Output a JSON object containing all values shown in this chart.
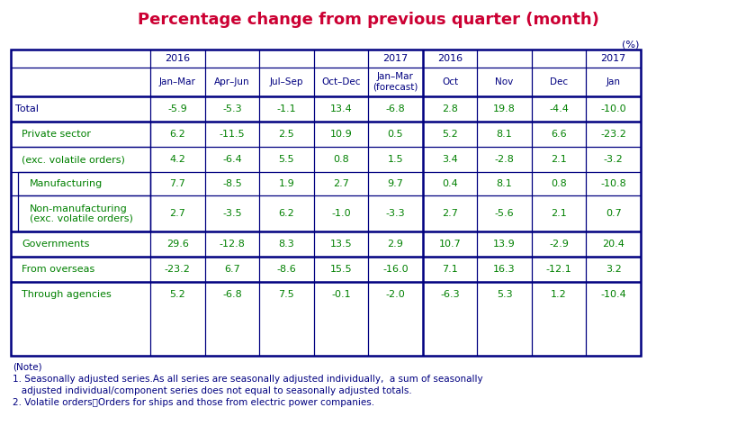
{
  "title": "Percentage change from previous quarter (month)",
  "title_color": "#cc0033",
  "percent_label": "(%)",
  "col_header_color": "#000080",
  "val_color": "#008000",
  "border_color": "#000080",
  "background_color": "#ffffff",
  "year_labels": [
    {
      "col": 1,
      "text": "2016"
    },
    {
      "col": 5,
      "text": "2017"
    },
    {
      "col": 6,
      "text": "2016"
    },
    {
      "col": 9,
      "text": "2017"
    }
  ],
  "col_labels": [
    "",
    "Jan–Mar",
    "Apr–Jun",
    "Jul–Sep",
    "Oct–Dec",
    "Jan–Mar\n(forecast)",
    "Oct",
    "Nov",
    "Dec",
    "Jan"
  ],
  "data_rows": [
    {
      "label": "Total",
      "indent": 0,
      "values": [
        "-5.9",
        "-5.3",
        "-1.1",
        "13.4",
        "-6.8",
        "2.8",
        "19.8",
        "-4.4",
        "-10.0"
      ],
      "label_color": "#000080"
    },
    {
      "label": "Private sector",
      "indent": 1,
      "values": [
        "6.2",
        "-11.5",
        "2.5",
        "10.9",
        "0.5",
        "5.2",
        "8.1",
        "6.6",
        "-23.2"
      ],
      "label_color": "#008000"
    },
    {
      "label": "(exc. volatile orders)",
      "indent": 1,
      "values": [
        "4.2",
        "-6.4",
        "5.5",
        "0.8",
        "1.5",
        "3.4",
        "-2.8",
        "2.1",
        "-3.2"
      ],
      "label_color": "#008000"
    },
    {
      "label": "Manufacturing",
      "indent": 2,
      "values": [
        "7.7",
        "-8.5",
        "1.9",
        "2.7",
        "9.7",
        "0.4",
        "8.1",
        "0.8",
        "-10.8"
      ],
      "label_color": "#008000"
    },
    {
      "label": "Non-manufacturing\n(exc. volatile orders)",
      "indent": 2,
      "values": [
        "2.7",
        "-3.5",
        "6.2",
        "-1.0",
        "-3.3",
        "2.7",
        "-5.6",
        "2.1",
        "0.7"
      ],
      "label_color": "#008000"
    },
    {
      "label": "Governments",
      "indent": 1,
      "values": [
        "29.6",
        "-12.8",
        "8.3",
        "13.5",
        "2.9",
        "10.7",
        "13.9",
        "-2.9",
        "20.4"
      ],
      "label_color": "#008000"
    },
    {
      "label": "From overseas",
      "indent": 1,
      "values": [
        "-23.2",
        "6.7",
        "-8.6",
        "15.5",
        "-16.0",
        "7.1",
        "16.3",
        "-12.1",
        "3.2"
      ],
      "label_color": "#008000"
    },
    {
      "label": "Through agencies",
      "indent": 1,
      "values": [
        "5.2",
        "-6.8",
        "7.5",
        "-0.1",
        "-2.0",
        "-6.3",
        "5.3",
        "1.2",
        "-10.4"
      ],
      "label_color": "#008000"
    }
  ],
  "note_lines": [
    {
      "text": "(Note)",
      "indent": 0
    },
    {
      "text": "1. Seasonally adjusted series.As all series are seasonally adjusted individually,  a sum of seasonally",
      "indent": 0
    },
    {
      "text": "   adjusted individual/component series does not equal to seasonally adjusted totals.",
      "indent": 0
    },
    {
      "text": "2. Volatile orders：Orders for ships and those from electric power companies.",
      "indent": 0
    }
  ],
  "note_color": "#000080",
  "fig_width": 8.19,
  "fig_height": 4.93,
  "dpi": 100
}
